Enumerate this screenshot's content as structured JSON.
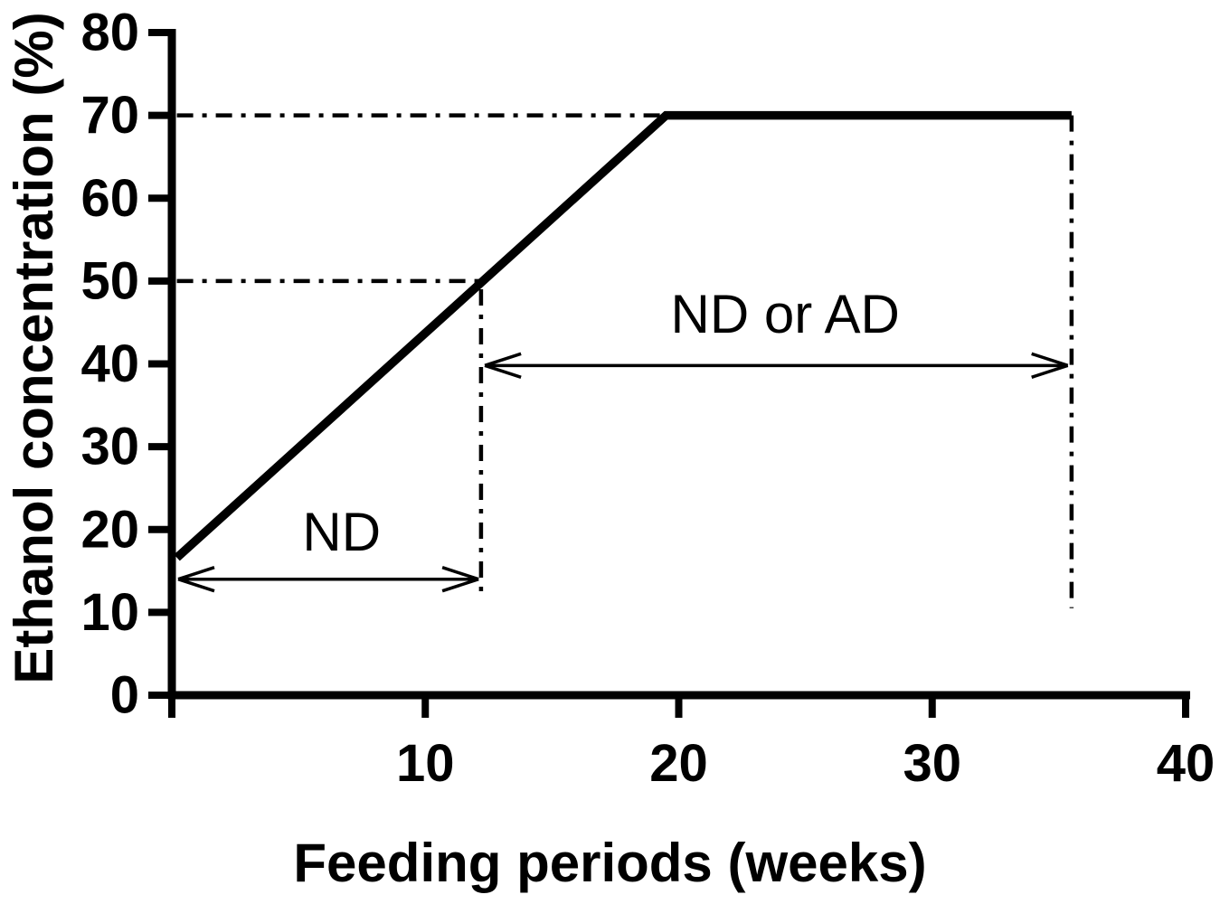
{
  "figure": {
    "background": "#ffffff",
    "ink_color": "#000000"
  },
  "chart_data": {
    "type": "line",
    "title": "",
    "xlabel": "Feeding periods (weeks)",
    "ylabel": "Ethanol concentration (%)",
    "xlim": [
      0,
      40
    ],
    "ylim": [
      0,
      80
    ],
    "grid": false,
    "legend": "none",
    "x_ticks": [
      0,
      10,
      20,
      30,
      40
    ],
    "x_tick_labels": [
      "",
      "10",
      "20",
      "30",
      "40"
    ],
    "y_ticks": [
      0,
      10,
      20,
      30,
      40,
      50,
      60,
      70,
      80
    ],
    "y_tick_labels": [
      "0",
      "10",
      "20",
      "30",
      "40",
      "50",
      "60",
      "70",
      "80"
    ],
    "series": [
      {
        "name": "ethanol-concentration-schedule",
        "x": [
          0.2,
          19.5,
          35.5
        ],
        "y": [
          16.6,
          70,
          70
        ],
        "color": "#000000"
      }
    ],
    "reference_lines": [
      {
        "orientation": "horizontal",
        "value": 70,
        "from": 0.2,
        "to": 19.5
      },
      {
        "orientation": "horizontal",
        "value": 50,
        "from": 0.2,
        "to": 12.2
      },
      {
        "orientation": "vertical",
        "value": 12.2,
        "from": 49,
        "to": 12
      },
      {
        "orientation": "vertical",
        "value": 35.5,
        "from": 70,
        "to": 10.5
      }
    ],
    "span_arrows": [
      {
        "label": "ND",
        "y": 14,
        "x1": 0.25,
        "x2": 12.1,
        "label_x": 6.7,
        "label_y": 19.7
      },
      {
        "label": "ND or AD",
        "y": 39.8,
        "x1": 12.35,
        "x2": 35.35,
        "label_x": 24.2,
        "label_y": 46
      }
    ]
  }
}
